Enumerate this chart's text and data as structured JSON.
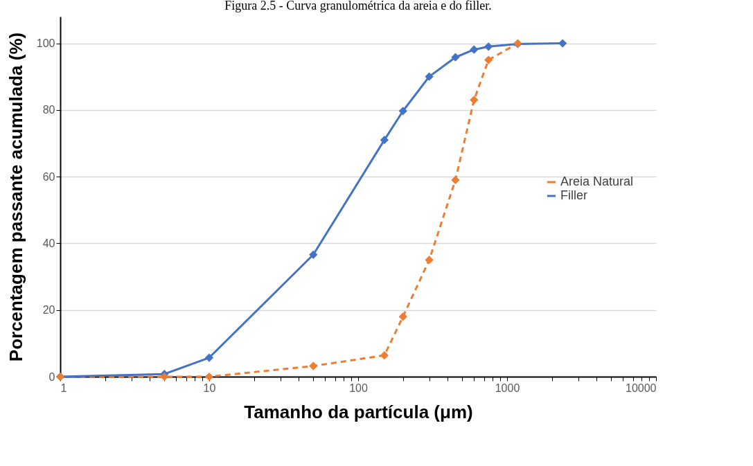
{
  "chart_data": {
    "type": "line",
    "title": "Figura 2.5 - Curva granulométrica da areia e do filler.",
    "xlabel": "Tamanho da partícula (μm)",
    "ylabel": "Porcentagem passante acumulada (%)",
    "log": "x",
    "xlim": [
      1,
      10000
    ],
    "xticks": [
      1,
      {
        "value": 2,
        "label": null
      },
      {
        "value": 3,
        "label": null
      },
      {
        "value": 4,
        "label": null
      },
      {
        "value": 5,
        "label": null
      },
      {
        "value": 6,
        "label": null
      },
      {
        "value": 7,
        "label": null
      },
      {
        "value": 8,
        "label": null
      },
      {
        "value": 9,
        "label": null
      },
      10,
      {
        "value": 20,
        "label": null
      },
      {
        "value": 30,
        "label": null
      },
      {
        "value": 40,
        "label": null
      },
      {
        "value": 50,
        "label": null
      },
      {
        "value": 60,
        "label": null
      },
      {
        "value": 70,
        "label": null
      },
      {
        "value": 80,
        "label": null
      },
      {
        "value": 90,
        "label": null
      },
      100,
      {
        "value": 200,
        "label": null
      },
      {
        "value": 300,
        "label": null
      },
      {
        "value": 400,
        "label": null
      },
      {
        "value": 500,
        "label": null
      },
      {
        "value": 600,
        "label": null
      },
      {
        "value": 700,
        "label": null
      },
      {
        "value": 800,
        "label": null
      },
      {
        "value": 900,
        "label": null
      },
      1000,
      {
        "value": 2000,
        "label": null
      },
      {
        "value": 3000,
        "label": null
      },
      {
        "value": 4000,
        "label": null
      },
      {
        "value": 5000,
        "label": null
      },
      {
        "value": 6000,
        "label": null
      },
      {
        "value": 7000,
        "label": null
      },
      {
        "value": 8000,
        "label": null
      },
      {
        "value": 9000,
        "label": null
      },
      10000
    ],
    "ylim": [
      0,
      108
    ],
    "yticks": [
      0,
      20,
      40,
      60,
      80,
      100
    ],
    "grid": "y",
    "legend": "right",
    "marker": "diamond",
    "series": [
      {
        "name": "Areia Natural",
        "color": "#ed7d31",
        "line_style": "dashed",
        "x": [
          1,
          5,
          10,
          50,
          150,
          200,
          300,
          450,
          600,
          750,
          1180
        ],
        "values": [
          0,
          0,
          0,
          3.2,
          6.4,
          18,
          35,
          59,
          83,
          95,
          100
        ]
      },
      {
        "name": "Filler",
        "color": "#4472c4",
        "line_style": "solid",
        "x": [
          1,
          5,
          10,
          50,
          150,
          200,
          300,
          450,
          600,
          750,
          1180,
          2360
        ],
        "values": [
          0,
          0.8,
          5.7,
          36.6,
          71,
          79.7,
          90,
          95.8,
          98.1,
          99,
          99.8,
          100
        ]
      }
    ]
  }
}
